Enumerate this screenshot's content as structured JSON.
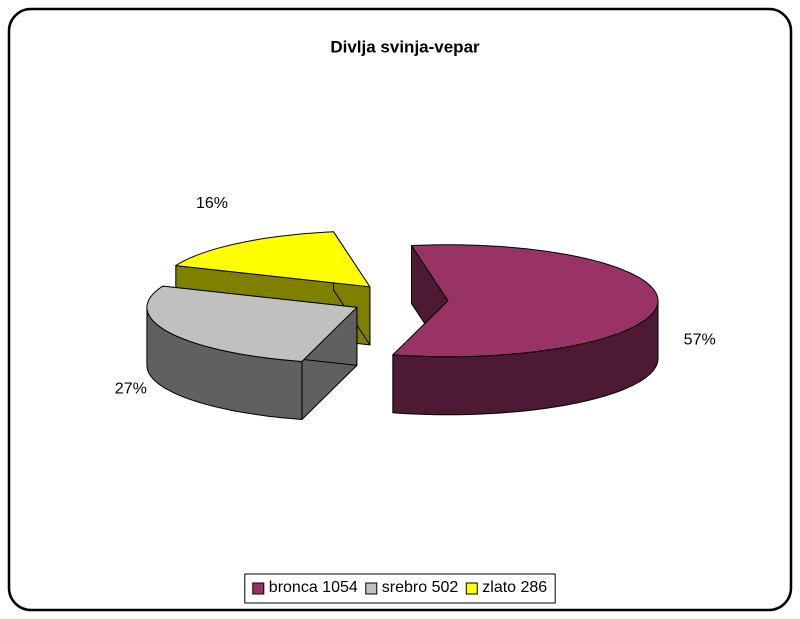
{
  "chart_data": {
    "type": "pie",
    "title": "Divlja svinja-vepar",
    "categories": [
      "bronca 1054",
      "srebro 502",
      "zlato 286"
    ],
    "values": [
      57,
      27,
      16
    ],
    "value_labels": [
      "57%",
      "27%",
      "16%"
    ],
    "colors": [
      "#993366",
      "#c0c0c0",
      "#ffff00"
    ],
    "side_colors": [
      "#4d1a33",
      "#606060",
      "#808000"
    ],
    "legend": "bottom"
  }
}
